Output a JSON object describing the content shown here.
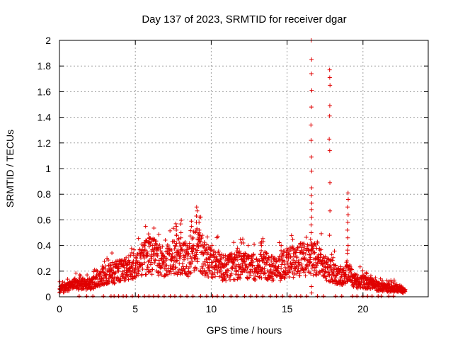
{
  "chart_data": {
    "type": "scatter",
    "title": "Day 137 of 2023, SRMTID for receiver dgar",
    "xlabel": "GPS time / hours",
    "ylabel": "SRMTID / TECUs",
    "xlim": [
      0,
      24.3
    ],
    "ylim": [
      0,
      2
    ],
    "grid": true,
    "xticks": [
      0,
      5,
      10,
      15,
      20
    ],
    "xtick_labels": [
      "0",
      "5",
      "10",
      "15",
      "20"
    ],
    "yticks": [
      0,
      0.2,
      0.4,
      0.6,
      0.8,
      1,
      1.2,
      1.4,
      1.6,
      1.8,
      2
    ],
    "ytick_labels": [
      "0",
      "0.2",
      "0.4",
      "0.6",
      "0.8",
      "1",
      "1.2",
      "1.4",
      "1.6",
      "1.8",
      "2"
    ],
    "marker": "+",
    "marker_color": "#e00000",
    "series": [
      {
        "name": "SRMTID",
        "profile": [
          [
            0.0,
            0.06
          ],
          [
            0.5,
            0.07
          ],
          [
            1.0,
            0.1
          ],
          [
            2.0,
            0.1
          ],
          [
            2.5,
            0.12
          ],
          [
            3.0,
            0.17
          ],
          [
            4.0,
            0.2
          ],
          [
            4.5,
            0.22
          ],
          [
            5.0,
            0.26
          ],
          [
            5.5,
            0.3
          ],
          [
            6.0,
            0.32
          ],
          [
            6.5,
            0.3
          ],
          [
            7.0,
            0.28
          ],
          [
            7.5,
            0.3
          ],
          [
            8.0,
            0.32
          ],
          [
            8.5,
            0.28
          ],
          [
            9.0,
            0.4
          ],
          [
            9.5,
            0.3
          ],
          [
            10.0,
            0.26
          ],
          [
            10.5,
            0.24
          ],
          [
            11.0,
            0.22
          ],
          [
            11.5,
            0.24
          ],
          [
            12.0,
            0.25
          ],
          [
            12.5,
            0.22
          ],
          [
            13.0,
            0.24
          ],
          [
            13.5,
            0.25
          ],
          [
            14.0,
            0.22
          ],
          [
            14.5,
            0.22
          ],
          [
            15.0,
            0.27
          ],
          [
            15.5,
            0.27
          ],
          [
            16.0,
            0.3
          ],
          [
            16.5,
            0.28
          ],
          [
            17.0,
            0.3
          ],
          [
            17.5,
            0.22
          ],
          [
            18.0,
            0.2
          ],
          [
            18.5,
            0.15
          ],
          [
            19.0,
            0.2
          ],
          [
            19.5,
            0.12
          ],
          [
            20.0,
            0.12
          ],
          [
            20.5,
            0.1
          ],
          [
            21.0,
            0.08
          ],
          [
            21.5,
            0.07
          ],
          [
            22.0,
            0.07
          ],
          [
            22.5,
            0.06
          ],
          [
            22.8,
            0.04
          ]
        ],
        "spikes": [
          {
            "x": 5.9,
            "values": [
              0.42,
              0.46,
              0.49
            ]
          },
          {
            "x": 7.7,
            "values": [
              0.48,
              0.52,
              0.55,
              0.57
            ]
          },
          {
            "x": 8.0,
            "values": [
              0.4,
              0.46,
              0.5
            ]
          },
          {
            "x": 8.7,
            "values": [
              0.55,
              0.59
            ]
          },
          {
            "x": 9.05,
            "values": [
              0.45,
              0.52,
              0.58,
              0.63,
              0.67,
              0.7
            ]
          },
          {
            "x": 9.2,
            "values": [
              0.45,
              0.52,
              0.58,
              0.62
            ]
          },
          {
            "x": 12.1,
            "values": [
              0.42,
              0.45
            ]
          },
          {
            "x": 13.3,
            "values": [
              0.36,
              0.4,
              0.43
            ]
          },
          {
            "x": 14.6,
            "values": [
              0.36,
              0.4
            ]
          },
          {
            "x": 16.6,
            "values": [
              0.03,
              0.08,
              0.42,
              0.5,
              0.56,
              0.62,
              0.68,
              0.73,
              0.79,
              0.85,
              0.98,
              1.09,
              1.22,
              1.34,
              1.48,
              1.61,
              1.74,
              1.85,
              2.0
            ]
          },
          {
            "x": 17.8,
            "values": [
              0.48,
              0.67,
              0.89,
              1.14,
              1.23,
              1.41,
              1.49,
              1.65,
              1.71,
              1.77
            ]
          },
          {
            "x": 19.0,
            "values": [
              0.34,
              0.4,
              0.46,
              0.52,
              0.58,
              0.64,
              0.7,
              0.76,
              0.81
            ]
          }
        ],
        "zero_points_x": [
          1.3,
          1.8,
          2.2,
          2.9,
          3.4,
          3.6,
          3.9,
          4.2,
          4.4,
          4.8,
          5.2,
          5.6,
          5.9,
          6.2,
          6.5,
          6.9,
          7.3,
          7.6,
          8.0,
          8.4,
          8.8,
          9.3,
          9.7,
          10.1,
          10.4,
          10.8,
          11.3,
          11.7,
          12.2,
          12.6,
          13.0,
          13.4,
          13.9,
          14.3,
          14.7,
          15.2,
          15.6,
          15.9,
          16.3,
          17.0,
          17.4,
          18.2,
          18.6,
          19.3,
          19.6,
          20.0,
          20.3,
          20.6,
          21.0,
          21.2,
          21.7,
          22.0
        ]
      }
    ]
  }
}
